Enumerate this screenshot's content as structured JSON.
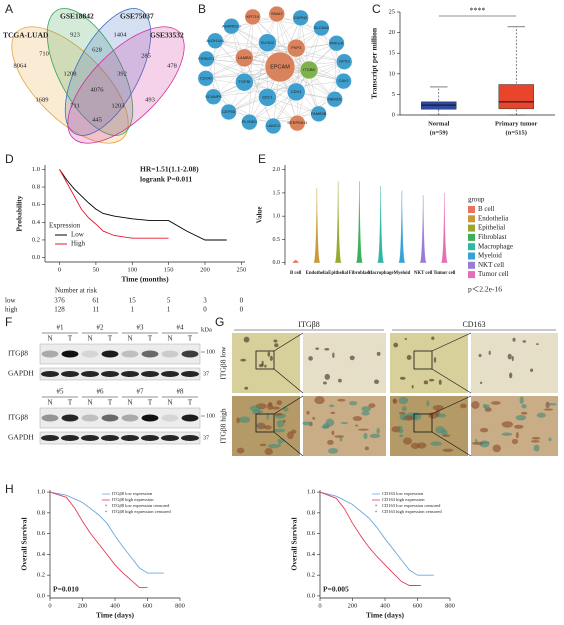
{
  "panel_labels": [
    "A",
    "B",
    "C",
    "D",
    "E",
    "F",
    "G",
    "H"
  ],
  "venn": {
    "sets": [
      {
        "name": "TCGA-LUAD",
        "color": "#e8a33d"
      },
      {
        "name": "GSE18842",
        "color": "#3aa357"
      },
      {
        "name": "GSE75037",
        "color": "#3a6fc4"
      },
      {
        "name": "GSE33532",
        "color": "#d1309a"
      }
    ],
    "counts": [
      8064,
      923,
      1404,
      478,
      710,
      628,
      285,
      1208,
      392,
      4076,
      1689,
      711,
      1203,
      493,
      445
    ]
  },
  "network": {
    "nodes": [
      {
        "label": "EPCAM",
        "color": "#d9825b"
      },
      {
        "label": "ITGB8",
        "color": "#7fb24c"
      },
      {
        "label": "CDH1",
        "color": "#3e9fcf"
      },
      {
        "label": "SDC1",
        "color": "#3e9fcf"
      },
      {
        "label": "TGFBI",
        "color": "#3e9fcf"
      },
      {
        "label": "LAMB3",
        "color": "#d9825b"
      },
      {
        "label": "SUSD2",
        "color": "#3e9fcf"
      },
      {
        "label": "PKP3",
        "color": "#d9825b"
      },
      {
        "label": "CAV1",
        "color": "#3e9fcf"
      },
      {
        "label": "MEMO1",
        "color": "#3e9fcf"
      },
      {
        "label": "FAM83B",
        "color": "#3e9fcf"
      },
      {
        "label": "SERPINH1",
        "color": "#d9825b"
      },
      {
        "label": "LAMC2",
        "color": "#3e9fcf"
      },
      {
        "label": "PLXNB1",
        "color": "#3e9fcf"
      },
      {
        "label": "CEP55",
        "color": "#3e9fcf"
      },
      {
        "label": "SCAMP5",
        "color": "#3e9fcf"
      },
      {
        "label": "CDON",
        "color": "#3e9fcf"
      },
      {
        "label": "FERMT1",
        "color": "#3e9fcf"
      },
      {
        "label": "ALDH1A1",
        "color": "#3e9fcf"
      },
      {
        "label": "ANKRD29",
        "color": "#3e9fcf"
      },
      {
        "label": "KRT19",
        "color": "#d9825b"
      },
      {
        "label": "SNAI2",
        "color": "#d9825b"
      },
      {
        "label": "CAPN2",
        "color": "#3e9fcf"
      },
      {
        "label": "SLC6A6",
        "color": "#3e9fcf"
      },
      {
        "label": "PRKCA",
        "color": "#3e9fcf"
      },
      {
        "label": "GPX3",
        "color": "#3e9fcf"
      }
    ]
  },
  "chart_data": [
    {
      "type": "box",
      "ylabel": "Transcript per million",
      "categories": [
        "Normal",
        "Primary tumor"
      ],
      "n_labels": [
        "(n=59)",
        "(n=515)"
      ],
      "colors": [
        "#2f4aa0",
        "#e8452c"
      ],
      "min": [
        0,
        0
      ],
      "q1": [
        1.4,
        1.5
      ],
      "median": [
        2.4,
        3.2
      ],
      "q3": [
        3.2,
        7.4
      ],
      "max": [
        6.8,
        21.4
      ],
      "ylim": [
        0,
        25
      ],
      "yticks": [
        0,
        5,
        10,
        15,
        20,
        25
      ],
      "annotation": "****"
    },
    {
      "type": "km",
      "annotations": [
        "HR=1.51(1.1-2.08)",
        "logrank P=0.011"
      ],
      "xlabel": "Time (months)",
      "ylabel": "Probability",
      "legend_title": "Expression",
      "legend": "lower left",
      "series": [
        {
          "name": "Low",
          "color": "#000000",
          "x": [
            0,
            10,
            20,
            30,
            40,
            50,
            60,
            75,
            100,
            125,
            150,
            175,
            200,
            230
          ],
          "values": [
            1,
            0.88,
            0.78,
            0.7,
            0.62,
            0.55,
            0.5,
            0.47,
            0.44,
            0.42,
            0.42,
            0.3,
            0.2,
            0.2
          ]
        },
        {
          "name": "High",
          "color": "#e8192c",
          "x": [
            0,
            10,
            20,
            30,
            40,
            50,
            60,
            75,
            100,
            150
          ],
          "values": [
            1,
            0.85,
            0.7,
            0.55,
            0.45,
            0.38,
            0.3,
            0.25,
            0.22,
            0.22
          ]
        }
      ],
      "xlim": [
        -20,
        255
      ],
      "xticks": [
        0,
        50,
        100,
        150,
        200,
        250
      ],
      "ylim": [
        -0.05,
        1.05
      ],
      "yticks": [
        {
          "value": 0,
          "label": "0.0"
        },
        {
          "value": 0.2,
          "label": "0.2"
        },
        {
          "value": 0.4,
          "label": "0.4"
        },
        {
          "value": 0.6,
          "label": "0.6"
        },
        {
          "value": 0.8,
          "label": "0.8"
        },
        {
          "value": 1,
          "label": "1.0"
        }
      ],
      "risk_table": {
        "title": "Number at risk",
        "rows": [
          {
            "name": "low",
            "values": [
              376,
              61,
              15,
              5,
              3,
              0
            ]
          },
          {
            "name": "high",
            "values": [
              128,
              11,
              1,
              1,
              0,
              0
            ]
          }
        ]
      }
    },
    {
      "type": "violin",
      "ylabel": "Value",
      "categories": [
        "B cell",
        "Endothelia",
        "Epithelial",
        "Fibroblast",
        "Macrophage",
        "Myeloid",
        "NKT cell",
        "Tumor cell"
      ],
      "colors": [
        "#e9735f",
        "#c99a3a",
        "#9aa830",
        "#3fae5a",
        "#2eb6a6",
        "#35a3d6",
        "#9b7bd6",
        "#e36fb8"
      ],
      "values": [
        0.05,
        1.6,
        1.75,
        1.75,
        1.65,
        1.55,
        1.45,
        1.5
      ],
      "ylim": [
        -0.05,
        2.1
      ],
      "yticks": [
        {
          "value": 0,
          "label": "0.0"
        },
        {
          "value": 0.5,
          "label": "0.5"
        },
        {
          "value": 1,
          "label": "1.0"
        },
        {
          "value": 1.5,
          "label": "1.5"
        },
        {
          "value": 2,
          "label": "2.0"
        }
      ],
      "legend_title": "group",
      "annotation": "p＜2.2e-16"
    },
    {
      "type": "km",
      "annotations": [
        "P=0.010"
      ],
      "xlabel": "Time (days)",
      "ylabel": "Overall Survival",
      "legend": "upper right",
      "series": [
        {
          "name": "ITGβ8 low expression",
          "color": "#6fa8dc",
          "x": [
            0,
            100,
            200,
            300,
            350,
            400,
            450,
            500,
            550,
            600,
            700
          ],
          "values": [
            1,
            0.97,
            0.9,
            0.78,
            0.7,
            0.58,
            0.47,
            0.37,
            0.27,
            0.22,
            0.22
          ]
        },
        {
          "name": "ITGβ8 high expression",
          "color": "#e0405a",
          "x": [
            0,
            100,
            150,
            200,
            250,
            300,
            350,
            400,
            450,
            500,
            550,
            600
          ],
          "values": [
            1,
            0.95,
            0.85,
            0.72,
            0.6,
            0.5,
            0.4,
            0.3,
            0.22,
            0.15,
            0.08,
            0.08
          ]
        }
      ],
      "censored_labels": [
        "ITGβ8 low expression censored",
        "ITGβ8 high expression censored"
      ],
      "xlim": [
        0,
        800
      ],
      "xticks": [
        0,
        200,
        400,
        600,
        800
      ],
      "ylim": [
        -0.02,
        1.02
      ],
      "yticks": [
        {
          "value": 0,
          "label": "0.0"
        },
        {
          "value": 0.2,
          "label": "0.2"
        },
        {
          "value": 0.4,
          "label": "0.4"
        },
        {
          "value": 0.6,
          "label": "0.6"
        },
        {
          "value": 0.8,
          "label": "0.8"
        },
        {
          "value": 1,
          "label": "1.0"
        }
      ]
    },
    {
      "type": "km",
      "annotations": [
        "P=0.005"
      ],
      "xlabel": "Time (days)",
      "ylabel": "Overall Survival",
      "legend": "upper right",
      "series": [
        {
          "name": "CD163 low expression",
          "color": "#6fa8dc",
          "x": [
            0,
            100,
            200,
            300,
            350,
            400,
            450,
            500,
            550,
            600,
            700
          ],
          "values": [
            1,
            0.96,
            0.88,
            0.75,
            0.66,
            0.55,
            0.45,
            0.35,
            0.25,
            0.2,
            0.2
          ]
        },
        {
          "name": "CD163 high expression",
          "color": "#e0405a",
          "x": [
            0,
            100,
            150,
            200,
            250,
            300,
            350,
            400,
            450,
            500,
            550,
            620
          ],
          "values": [
            1,
            0.94,
            0.84,
            0.7,
            0.58,
            0.47,
            0.38,
            0.3,
            0.22,
            0.14,
            0.1,
            0.1
          ]
        }
      ],
      "censored_labels": [
        "CD163 low expression censored",
        "CD163 high expression censored"
      ],
      "xlim": [
        0,
        800
      ],
      "xticks": [
        0,
        200,
        400,
        600,
        800
      ],
      "ylim": [
        -0.02,
        1.02
      ],
      "yticks": [
        {
          "value": 0,
          "label": "0.0"
        },
        {
          "value": 0.2,
          "label": "0.2"
        },
        {
          "value": 0.4,
          "label": "0.4"
        },
        {
          "value": 0.6,
          "label": "0.6"
        },
        {
          "value": 0.8,
          "label": "0.8"
        },
        {
          "value": 1,
          "label": "1.0"
        }
      ]
    }
  ],
  "western": {
    "lanes_top": [
      "#1",
      "#2",
      "#3",
      "#4"
    ],
    "lanes_bottom": [
      "#5",
      "#6",
      "#7",
      "#8"
    ],
    "lane_pair": [
      "N",
      "T"
    ],
    "proteins": [
      "ITGβ8",
      "GAPDH"
    ],
    "unit": "kDa",
    "markers": [
      100,
      37
    ]
  },
  "ihc": {
    "columns": [
      "ITGβ8",
      "CD163"
    ],
    "rows": [
      "ITGβ8 low",
      "ITGβ8 high"
    ]
  }
}
